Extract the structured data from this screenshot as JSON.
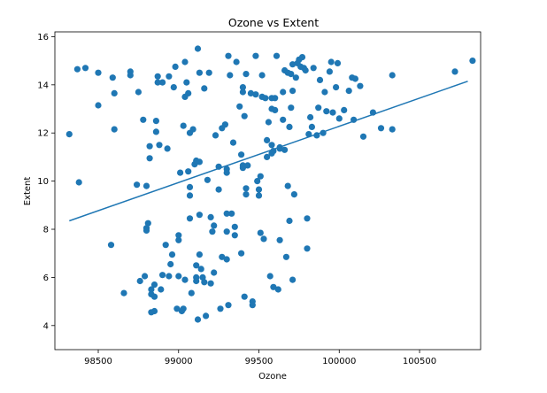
{
  "chart_data": {
    "type": "scatter",
    "title": "Ozone vs Extent",
    "xlabel": "Ozone",
    "ylabel": "Extent",
    "xlim": [
      98230,
      100880
    ],
    "ylim": [
      3.0,
      16.2
    ],
    "xticks": [
      98500,
      99000,
      99500,
      100000,
      100500
    ],
    "yticks": [
      4,
      6,
      8,
      10,
      12,
      14,
      16
    ],
    "grid": false,
    "legend": "none",
    "point_color": "#1f77b4",
    "line_color": "#1f77b4",
    "fit_line": {
      "x": [
        98320,
        100800
      ],
      "y": [
        8.35,
        14.15
      ]
    },
    "points": [
      [
        98320,
        11.95
      ],
      [
        98370,
        14.65
      ],
      [
        98380,
        9.95
      ],
      [
        98420,
        14.7
      ],
      [
        98500,
        14.5
      ],
      [
        98500,
        13.15
      ],
      [
        98580,
        7.35
      ],
      [
        98590,
        14.3
      ],
      [
        98600,
        13.65
      ],
      [
        98600,
        12.15
      ],
      [
        98660,
        5.35
      ],
      [
        98700,
        14.55
      ],
      [
        98700,
        14.4
      ],
      [
        98740,
        9.85
      ],
      [
        98750,
        13.7
      ],
      [
        98760,
        5.85
      ],
      [
        98780,
        12.55
      ],
      [
        98790,
        6.05
      ],
      [
        98800,
        9.8
      ],
      [
        98810,
        8.25
      ],
      [
        98800,
        8.05
      ],
      [
        98800,
        7.95
      ],
      [
        98820,
        11.45
      ],
      [
        98820,
        10.95
      ],
      [
        98830,
        5.5
      ],
      [
        98830,
        5.3
      ],
      [
        98830,
        4.55
      ],
      [
        98850,
        5.7
      ],
      [
        98850,
        5.2
      ],
      [
        98850,
        4.6
      ],
      [
        98860,
        12.5
      ],
      [
        98860,
        12.05
      ],
      [
        98870,
        14.35
      ],
      [
        98870,
        14.1
      ],
      [
        98880,
        11.5
      ],
      [
        98890,
        5.5
      ],
      [
        98900,
        6.1
      ],
      [
        98900,
        14.1
      ],
      [
        98920,
        7.35
      ],
      [
        98930,
        11.35
      ],
      [
        98940,
        14.35
      ],
      [
        98940,
        6.05
      ],
      [
        98950,
        6.55
      ],
      [
        98960,
        6.95
      ],
      [
        98970,
        13.9
      ],
      [
        98980,
        14.75
      ],
      [
        98990,
        4.7
      ],
      [
        99000,
        7.55
      ],
      [
        99000,
        7.75
      ],
      [
        99000,
        6.05
      ],
      [
        99010,
        10.35
      ],
      [
        99020,
        4.6
      ],
      [
        99030,
        4.7
      ],
      [
        99030,
        12.3
      ],
      [
        99040,
        5.9
      ],
      [
        99040,
        14.95
      ],
      [
        99040,
        13.5
      ],
      [
        99050,
        14.1
      ],
      [
        99060,
        13.65
      ],
      [
        99060,
        10.4
      ],
      [
        99070,
        9.75
      ],
      [
        99070,
        9.4
      ],
      [
        99070,
        8.45
      ],
      [
        99070,
        12.0
      ],
      [
        99080,
        5.35
      ],
      [
        99090,
        12.15
      ],
      [
        99100,
        10.7
      ],
      [
        99110,
        10.85
      ],
      [
        99110,
        6.5
      ],
      [
        99110,
        6.0
      ],
      [
        99110,
        5.85
      ],
      [
        99120,
        15.5
      ],
      [
        99120,
        4.25
      ],
      [
        99130,
        14.5
      ],
      [
        99130,
        10.8
      ],
      [
        99130,
        8.6
      ],
      [
        99130,
        6.95
      ],
      [
        99140,
        6.35
      ],
      [
        99150,
        6.0
      ],
      [
        99160,
        13.85
      ],
      [
        99160,
        5.8
      ],
      [
        99170,
        4.4
      ],
      [
        99180,
        10.05
      ],
      [
        99190,
        14.5
      ],
      [
        99200,
        8.5
      ],
      [
        99200,
        5.75
      ],
      [
        99210,
        7.9
      ],
      [
        99220,
        6.2
      ],
      [
        99220,
        8.15
      ],
      [
        99230,
        11.9
      ],
      [
        99250,
        9.65
      ],
      [
        99250,
        10.6
      ],
      [
        99260,
        4.7
      ],
      [
        99270,
        6.85
      ],
      [
        99270,
        12.2
      ],
      [
        99290,
        12.35
      ],
      [
        99300,
        10.5
      ],
      [
        99300,
        10.35
      ],
      [
        99300,
        8.65
      ],
      [
        99300,
        7.9
      ],
      [
        99300,
        6.75
      ],
      [
        99310,
        4.85
      ],
      [
        99310,
        15.2
      ],
      [
        99320,
        14.4
      ],
      [
        99330,
        8.65
      ],
      [
        99340,
        11.6
      ],
      [
        99350,
        8.1
      ],
      [
        99350,
        7.75
      ],
      [
        99360,
        14.95
      ],
      [
        99380,
        13.1
      ],
      [
        99390,
        11.1
      ],
      [
        99390,
        7.0
      ],
      [
        99400,
        13.9
      ],
      [
        99400,
        13.7
      ],
      [
        99400,
        10.55
      ],
      [
        99400,
        10.65
      ],
      [
        99410,
        5.2
      ],
      [
        99410,
        12.7
      ],
      [
        99420,
        14.45
      ],
      [
        99420,
        9.7
      ],
      [
        99420,
        9.45
      ],
      [
        99430,
        10.65
      ],
      [
        99450,
        13.65
      ],
      [
        99460,
        5.0
      ],
      [
        99460,
        4.85
      ],
      [
        99480,
        15.2
      ],
      [
        99480,
        13.6
      ],
      [
        99490,
        10.0
      ],
      [
        99500,
        9.4
      ],
      [
        99500,
        9.65
      ],
      [
        99510,
        10.2
      ],
      [
        99510,
        7.85
      ],
      [
        99520,
        14.4
      ],
      [
        99520,
        13.5
      ],
      [
        99530,
        7.6
      ],
      [
        99540,
        13.45
      ],
      [
        99550,
        11.7
      ],
      [
        99550,
        11.0
      ],
      [
        99560,
        12.45
      ],
      [
        99570,
        6.05
      ],
      [
        99580,
        13.45
      ],
      [
        99580,
        13.0
      ],
      [
        99580,
        11.5
      ],
      [
        99580,
        11.15
      ],
      [
        99590,
        11.25
      ],
      [
        99590,
        5.6
      ],
      [
        99600,
        12.95
      ],
      [
        99600,
        13.45
      ],
      [
        99610,
        15.2
      ],
      [
        99620,
        5.5
      ],
      [
        99630,
        11.35
      ],
      [
        99630,
        11.4
      ],
      [
        99630,
        7.55
      ],
      [
        99650,
        12.55
      ],
      [
        99650,
        13.7
      ],
      [
        99660,
        14.6
      ],
      [
        99660,
        11.3
      ],
      [
        99670,
        6.85
      ],
      [
        99680,
        9.8
      ],
      [
        99680,
        14.5
      ],
      [
        99690,
        8.35
      ],
      [
        99690,
        12.25
      ],
      [
        99700,
        14.45
      ],
      [
        99700,
        13.05
      ],
      [
        99710,
        14.85
      ],
      [
        99710,
        13.75
      ],
      [
        99710,
        5.9
      ],
      [
        99720,
        9.45
      ],
      [
        99730,
        14.3
      ],
      [
        99740,
        14.9
      ],
      [
        99750,
        15.05
      ],
      [
        99760,
        14.75
      ],
      [
        99770,
        15.15
      ],
      [
        99780,
        14.7
      ],
      [
        99790,
        14.6
      ],
      [
        99800,
        8.45
      ],
      [
        99800,
        7.2
      ],
      [
        99810,
        11.95
      ],
      [
        99820,
        12.65
      ],
      [
        99830,
        12.25
      ],
      [
        99840,
        14.7
      ],
      [
        99860,
        11.9
      ],
      [
        99870,
        13.05
      ],
      [
        99880,
        14.2
      ],
      [
        99900,
        12.0
      ],
      [
        99910,
        13.7
      ],
      [
        99920,
        12.9
      ],
      [
        99940,
        14.55
      ],
      [
        99950,
        14.95
      ],
      [
        99960,
        12.85
      ],
      [
        99980,
        13.9
      ],
      [
        99990,
        14.9
      ],
      [
        100000,
        12.6
      ],
      [
        100030,
        12.95
      ],
      [
        100060,
        13.75
      ],
      [
        100080,
        14.3
      ],
      [
        100090,
        12.55
      ],
      [
        100100,
        14.25
      ],
      [
        100130,
        13.95
      ],
      [
        100150,
        11.85
      ],
      [
        100210,
        12.85
      ],
      [
        100260,
        12.2
      ],
      [
        100330,
        12.15
      ],
      [
        100330,
        14.4
      ],
      [
        100720,
        14.55
      ],
      [
        100830,
        15.0
      ]
    ]
  }
}
